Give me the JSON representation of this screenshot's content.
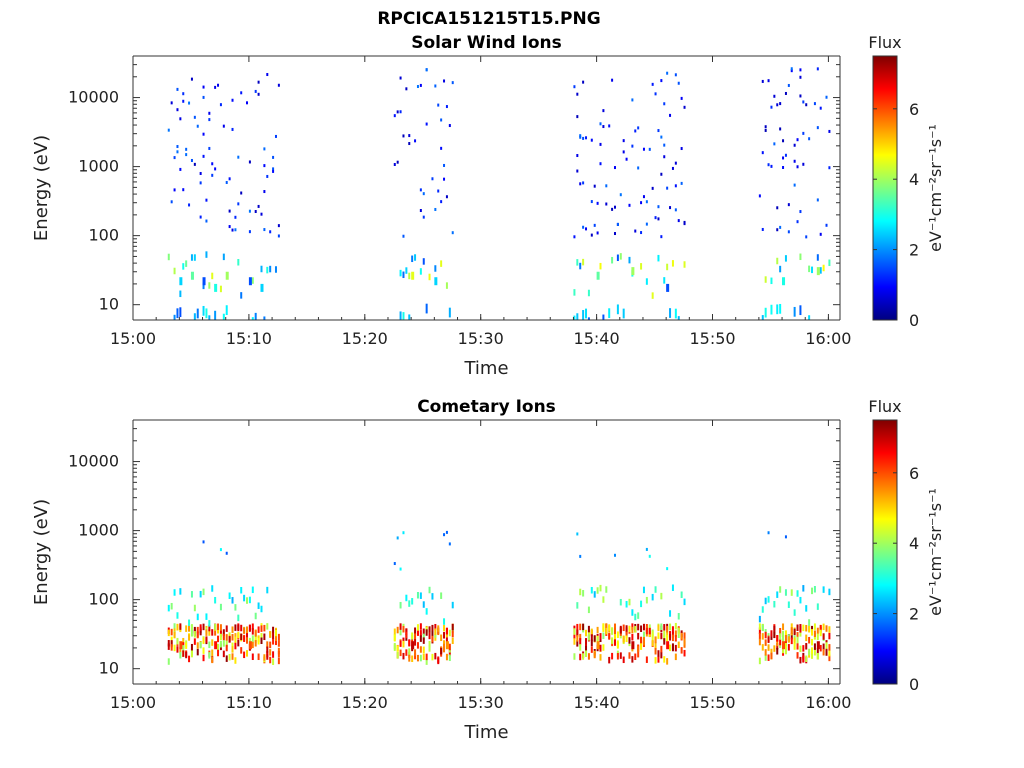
{
  "figure": {
    "filename": "RPCICA151215T15.PNG"
  },
  "colormap": [
    "#00007f",
    "#0000ff",
    "#007fff",
    "#00ffff",
    "#7fff7f",
    "#ffff00",
    "#ff7f00",
    "#ff0000",
    "#7f0000"
  ],
  "chart_data": [
    {
      "type": "heatmap",
      "title": "Solar Wind Ions",
      "xlabel": "Time",
      "ylabel": "Energy (eV)",
      "yscale": "log",
      "ylim": [
        6,
        40000
      ],
      "xlim": [
        "15:00",
        "16:01"
      ],
      "x_tick_labels": [
        "15:00",
        "15:10",
        "15:20",
        "15:30",
        "15:40",
        "15:50",
        "16:00"
      ],
      "y_tick_labels": [
        "10",
        "100",
        "1000",
        "10000"
      ],
      "colorbar": {
        "title": "Flux",
        "label": "eV⁻¹cm⁻²sr⁻¹s⁻¹",
        "range": [
          0,
          7.5
        ],
        "tick_labels": [
          "0",
          "2",
          "4",
          "6"
        ]
      },
      "clusters": [
        {
          "start": "15:03",
          "end": "15:12.5"
        },
        {
          "start": "15:22.5",
          "end": "15:27.5"
        },
        {
          "start": "15:38",
          "end": "15:47.5"
        },
        {
          "start": "15:54",
          "end": "16:00"
        }
      ],
      "cells": [
        {
          "t": "15:04",
          "e": 25,
          "flux": 2.5
        },
        {
          "t": "15:05",
          "e": 30,
          "flux": 3.5
        },
        {
          "t": "15:06",
          "e": 25,
          "flux": 1.5
        },
        {
          "t": "15:07",
          "e": 20,
          "flux": 3
        },
        {
          "t": "15:08",
          "e": 30,
          "flux": 4
        },
        {
          "t": "15:10",
          "e": 25,
          "flux": 1.5
        },
        {
          "t": "15:11",
          "e": 20,
          "flux": 2.5
        },
        {
          "t": "15:24",
          "e": 30,
          "flux": 4.5
        },
        {
          "t": "15:26",
          "e": 25,
          "flux": 2.5
        },
        {
          "t": "15:40",
          "e": 30,
          "flux": 3.5
        },
        {
          "t": "15:43",
          "e": 35,
          "flux": 4
        },
        {
          "t": "15:46",
          "e": 20,
          "flux": 1.5
        },
        {
          "t": "15:56",
          "e": 25,
          "flux": 3
        },
        {
          "t": "15:59",
          "e": 35,
          "flux": 4
        }
      ]
    },
    {
      "type": "heatmap",
      "title": "Cometary Ions",
      "xlabel": "Time",
      "ylabel": "Energy (eV)",
      "yscale": "log",
      "ylim": [
        6,
        40000
      ],
      "xlim": [
        "15:00",
        "16:01"
      ],
      "x_tick_labels": [
        "15:00",
        "15:10",
        "15:20",
        "15:30",
        "15:40",
        "15:50",
        "16:00"
      ],
      "y_tick_labels": [
        "10",
        "100",
        "1000",
        "10000"
      ],
      "colorbar": {
        "title": "Flux",
        "label": "eV⁻¹cm⁻²sr⁻¹s⁻¹",
        "range": [
          0,
          7.5
        ],
        "tick_labels": [
          "0",
          "2",
          "4",
          "6"
        ]
      },
      "clusters": [
        {
          "start": "15:03",
          "end": "15:12.5"
        },
        {
          "start": "15:22.5",
          "end": "15:27.5"
        },
        {
          "start": "15:38",
          "end": "15:47.5"
        },
        {
          "start": "15:54",
          "end": "16:00"
        }
      ],
      "cells": [
        {
          "t": "15:04",
          "e": 25,
          "flux": 6
        },
        {
          "t": "15:07",
          "e": 25,
          "flux": 6.5
        },
        {
          "t": "15:10",
          "e": 25,
          "flux": 6
        },
        {
          "t": "15:24",
          "e": 25,
          "flux": 7
        },
        {
          "t": "15:27",
          "e": 25,
          "flux": 5.5
        },
        {
          "t": "15:40",
          "e": 25,
          "flux": 5.5
        },
        {
          "t": "15:43",
          "e": 25,
          "flux": 7
        },
        {
          "t": "15:46",
          "e": 25,
          "flux": 6.5
        },
        {
          "t": "15:56",
          "e": 25,
          "flux": 6
        },
        {
          "t": "15:59",
          "e": 25,
          "flux": 7
        }
      ]
    }
  ]
}
